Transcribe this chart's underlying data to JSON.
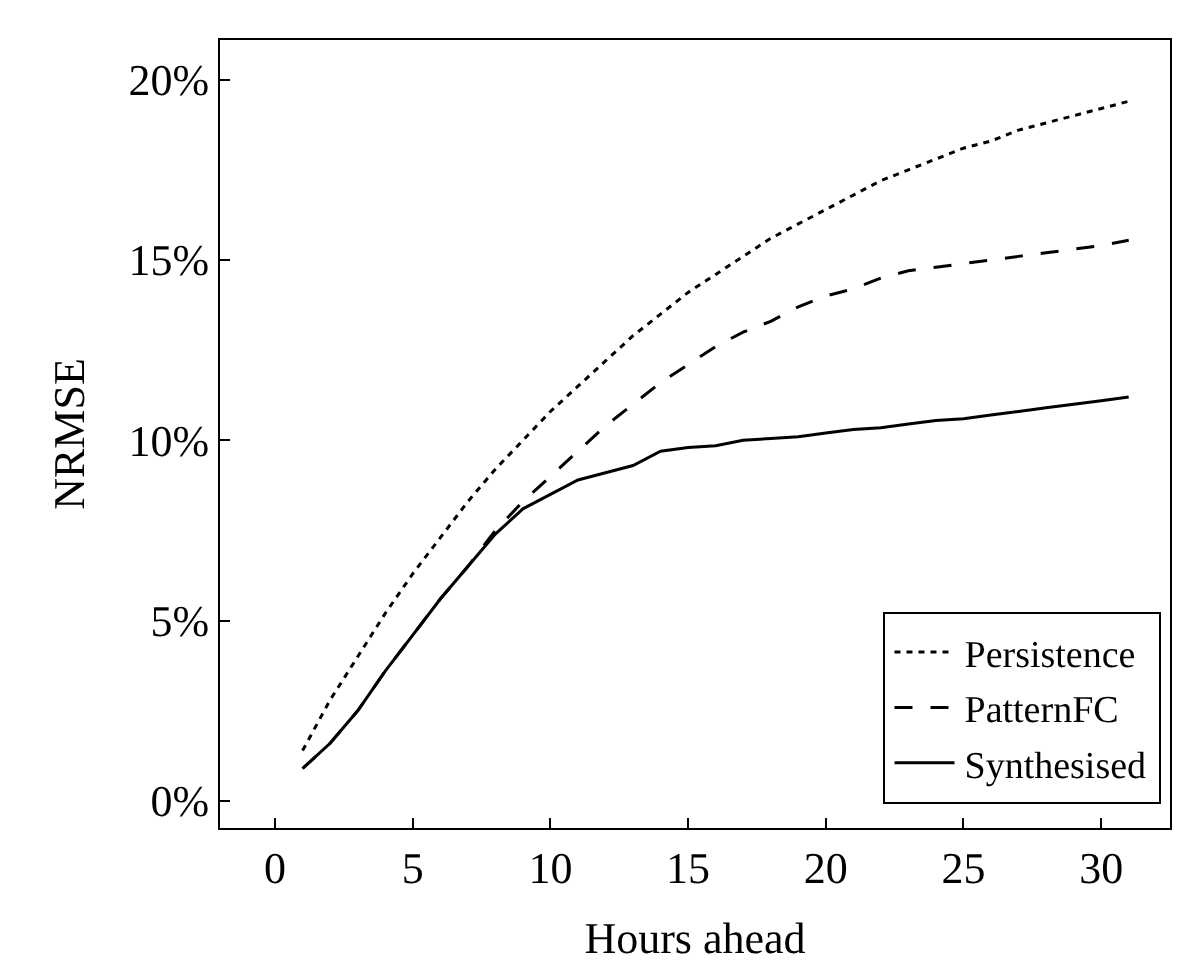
{
  "chart_data": {
    "type": "line",
    "xlabel": "Hours ahead",
    "ylabel": "NRMSE",
    "x": [
      1,
      2,
      3,
      4,
      5,
      6,
      7,
      8,
      9,
      10,
      11,
      12,
      13,
      14,
      15,
      16,
      17,
      18,
      19,
      20,
      21,
      22,
      23,
      24,
      25,
      26,
      27,
      28,
      29,
      30,
      31
    ],
    "series": [
      {
        "name": "Persistence",
        "color": "#000000",
        "line_style": "dotted",
        "values": [
          1.4,
          2.8,
          4.0,
          5.2,
          6.3,
          7.3,
          8.3,
          9.2,
          10.0,
          10.8,
          11.5,
          12.2,
          12.9,
          13.5,
          14.1,
          14.6,
          15.1,
          15.6,
          16.0,
          16.4,
          16.8,
          17.2,
          17.5,
          17.8,
          18.1,
          18.3,
          18.6,
          18.8,
          19.0,
          19.2,
          19.4
        ]
      },
      {
        "name": "PatternFC",
        "color": "#000000",
        "line_style": "dashed",
        "values": [
          0.9,
          1.6,
          2.5,
          3.6,
          4.6,
          5.6,
          6.5,
          7.5,
          8.3,
          9.0,
          9.7,
          10.4,
          11.0,
          11.6,
          12.1,
          12.6,
          13.0,
          13.3,
          13.7,
          14.0,
          14.2,
          14.5,
          14.7,
          14.8,
          14.9,
          15.0,
          15.1,
          15.2,
          15.3,
          15.4,
          15.55
        ]
      },
      {
        "name": "Synthesised",
        "color": "#000000",
        "line_style": "solid",
        "values": [
          0.9,
          1.6,
          2.5,
          3.6,
          4.6,
          5.6,
          6.5,
          7.4,
          8.1,
          8.5,
          8.9,
          9.1,
          9.3,
          9.7,
          9.8,
          9.85,
          10.0,
          10.05,
          10.1,
          10.2,
          10.3,
          10.35,
          10.45,
          10.55,
          10.6,
          10.7,
          10.8,
          10.9,
          11.0,
          11.1,
          11.2
        ]
      }
    ],
    "xlim": [
      -2,
      32.5
    ],
    "xticks": [
      0,
      5,
      10,
      15,
      20,
      25,
      30
    ],
    "ylim": [
      -0.75,
      21.1
    ],
    "yticks": [
      {
        "value": 0,
        "label": "0%"
      },
      {
        "value": 5,
        "label": "5%"
      },
      {
        "value": 10,
        "label": "10%"
      },
      {
        "value": 15,
        "label": "15%"
      },
      {
        "value": 20,
        "label": "20%"
      }
    ],
    "legend": "bottom right",
    "marker": "none"
  }
}
